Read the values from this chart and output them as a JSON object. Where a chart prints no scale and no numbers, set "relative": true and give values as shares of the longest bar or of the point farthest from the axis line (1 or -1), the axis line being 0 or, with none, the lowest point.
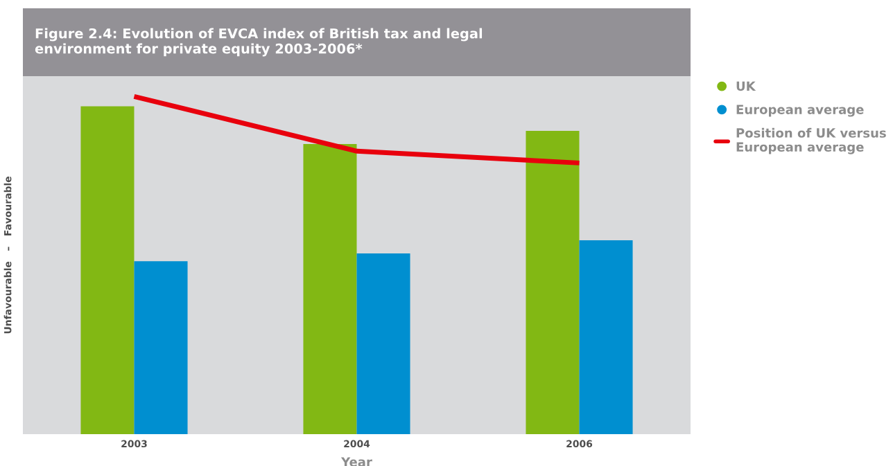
{
  "chart_data": {
    "type": "bar",
    "title": "Figure 2.4: Evolution of EVCA index of British tax and legal\nenvironment for private equity 2003-2006*",
    "ylabel": "Unfavourable   –   Favourable",
    "xlabel": "Year",
    "categories": [
      "2003",
      "2004",
      "2006"
    ],
    "relative": true,
    "legend": "right",
    "grid": false,
    "series": [
      {
        "name": "UK",
        "color": "#82b814",
        "values": [
          0.971,
          0.859,
          0.898
        ]
      },
      {
        "name": "European average",
        "color": "#008fd0",
        "values": [
          0.512,
          0.535,
          0.574
        ]
      },
      {
        "name": "Position of UK versus\nEuropean average",
        "color": "#e8000d",
        "type": "line",
        "values": [
          1.0,
          0.838,
          0.803
        ]
      }
    ]
  }
}
